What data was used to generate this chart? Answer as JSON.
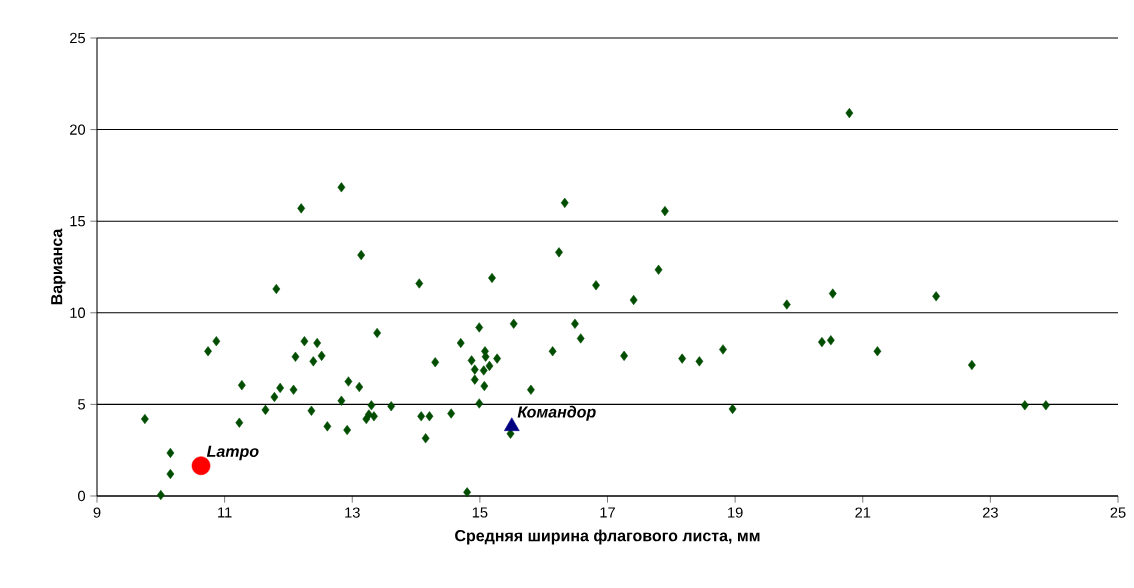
{
  "chart_data": {
    "type": "scatter",
    "xlabel": "Средняя ширина флагового листа, мм",
    "ylabel": "Варианса",
    "xlim": [
      9,
      25
    ],
    "xticks": [
      9,
      11,
      13,
      15,
      17,
      19,
      21,
      23,
      25
    ],
    "ylim": [
      0,
      25
    ],
    "yticks": [
      0,
      5,
      10,
      15,
      20,
      25
    ],
    "grid": "y",
    "legend": false,
    "series": [
      {
        "color": "#004d00",
        "marker": "diamond",
        "x": [
          9.75,
          10.15,
          10.15,
          10.0,
          10.74,
          10.87,
          11.27,
          11.23,
          11.64,
          11.78,
          11.87,
          11.81,
          12.2,
          12.83,
          12.08,
          12.11,
          12.25,
          12.39,
          12.45,
          12.52,
          12.36,
          12.61,
          12.83,
          12.94,
          12.92,
          13.14,
          13.11,
          13.3,
          13.26,
          13.22,
          13.34,
          13.39,
          13.61,
          14.05,
          14.08,
          14.21,
          14.15,
          14.3,
          14.55,
          14.7,
          14.8,
          14.99,
          14.87,
          15.08,
          15.09,
          14.92,
          15.15,
          15.27,
          15.06,
          14.92,
          15.07,
          14.99,
          15.48,
          15.19,
          15.53,
          15.8,
          16.14,
          16.24,
          16.33,
          16.49,
          16.58,
          16.82,
          17.26,
          17.41,
          17.8,
          17.9,
          18.17,
          18.44,
          18.81,
          18.96,
          19.81,
          20.79,
          20.53,
          22.15,
          20.36,
          20.5,
          21.23,
          22.71,
          23.54,
          23.87
        ],
        "values": [
          4.2,
          2.35,
          1.2,
          0.05,
          7.9,
          8.45,
          6.05,
          4.0,
          4.7,
          5.4,
          5.9,
          11.3,
          15.7,
          16.85,
          5.8,
          7.6,
          8.45,
          7.35,
          8.35,
          7.65,
          4.65,
          3.8,
          5.2,
          6.25,
          3.6,
          13.15,
          5.95,
          4.95,
          4.45,
          4.2,
          4.35,
          8.9,
          4.9,
          11.6,
          4.35,
          4.35,
          3.15,
          7.3,
          4.5,
          8.35,
          0.2,
          9.2,
          7.4,
          7.9,
          7.6,
          6.9,
          7.1,
          7.5,
          6.85,
          6.35,
          6.0,
          5.05,
          3.4,
          11.9,
          9.4,
          5.8,
          7.9,
          13.3,
          16.0,
          9.4,
          8.6,
          11.5,
          7.65,
          10.7,
          12.35,
          15.55,
          7.5,
          7.35,
          8.0,
          4.75,
          10.45,
          20.9,
          11.05,
          10.9,
          8.4,
          8.5,
          7.9,
          7.15,
          4.95,
          4.95
        ]
      },
      {
        "name": "Lampo",
        "color": "#ff0000",
        "marker": "circle",
        "x": [
          10.63
        ],
        "values": [
          1.65
        ]
      },
      {
        "name": "Командор",
        "color": "#000080",
        "marker": "triangle",
        "x": [
          15.5
        ],
        "values": [
          3.8
        ]
      }
    ]
  }
}
